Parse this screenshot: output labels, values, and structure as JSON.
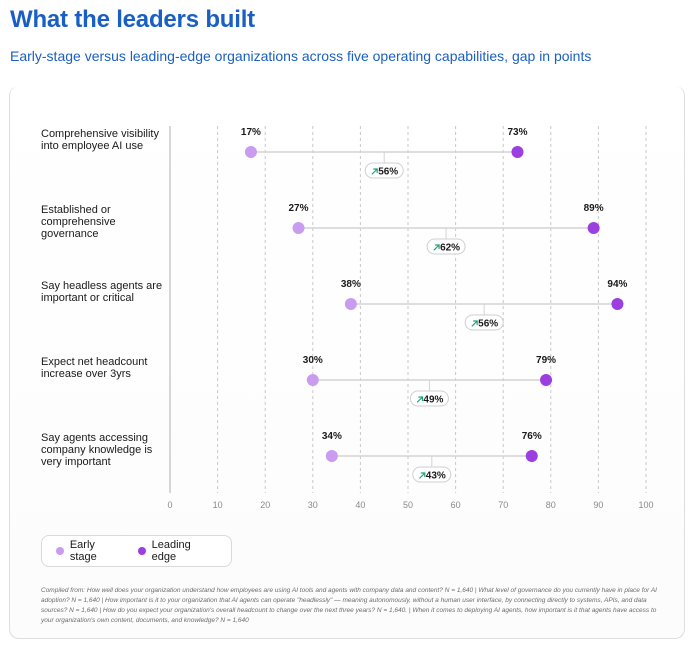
{
  "title": "What the leaders built",
  "subtitle": "Early-stage versus leading-edge organizations across five operating capabilities, gap in points",
  "legend": {
    "early_label": "Early stage",
    "leading_label": "Leading edge"
  },
  "colors": {
    "early": "#c99cf0",
    "leading": "#9b3fe0",
    "gap_arrow": "#1aa37a",
    "title": "#1a5fc4"
  },
  "footnote": "Compiled from: How well does your organization understand how employees are using AI tools and agents with company data and content? N = 1,640 | What level of governance do you currently have in place for AI adoption? N = 1,640 | How important is it to your organization that AI agents can operate \"headlessly\" — meaning autonomously, without a human user interface, by connecting directly to systems, APIs, and data sources? N = 1,640 | How do you expect your organization's overall headcount to change over the next three years? N = 1,640. | When it comes to deploying AI agents, how important is it that agents have access to your organization's own content, documents, and knowledge? N = 1,640",
  "chart_data": {
    "type": "dumbbell",
    "xlim": [
      0,
      100
    ],
    "xticks": [
      0,
      10,
      20,
      30,
      40,
      50,
      60,
      70,
      80,
      90,
      100
    ],
    "grid": "vertical-dashed",
    "legend_position": "bottom-left",
    "series_names": [
      "Early stage",
      "Leading edge"
    ],
    "rows": [
      {
        "label": "Comprehensive visibility into employee AI use",
        "early": 17,
        "leading": 73,
        "early_label": "17%",
        "leading_label": "73%",
        "gap_label": "56%"
      },
      {
        "label": "Established or comprehensive governance",
        "early": 27,
        "leading": 89,
        "early_label": "27%",
        "leading_label": "89%",
        "gap_label": "62%"
      },
      {
        "label": "Say headless agents are important or critical",
        "early": 38,
        "leading": 94,
        "early_label": "38%",
        "leading_label": "94%",
        "gap_label": "56%"
      },
      {
        "label": "Expect net headcount increase over 3yrs",
        "early": 30,
        "leading": 79,
        "early_label": "30%",
        "leading_label": "79%",
        "gap_label": "49%"
      },
      {
        "label": "Say agents accessing company knowledge is very important",
        "early": 34,
        "leading": 76,
        "early_label": "34%",
        "leading_label": "76%",
        "gap_label": "43%"
      }
    ]
  }
}
